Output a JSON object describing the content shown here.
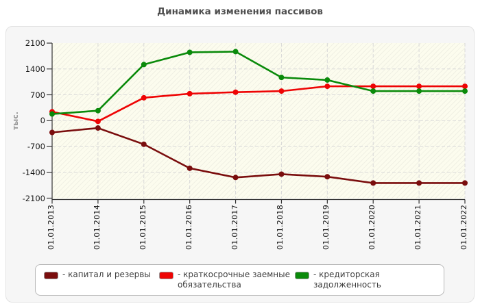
{
  "title": "Динамика изменения пассивов",
  "y_axis": {
    "label": "тыс."
  },
  "chart_data": {
    "type": "line",
    "title": "Динамика изменения пассивов",
    "ylabel": "тыс.",
    "ylim": [
      -2100,
      2100
    ],
    "yticks": [
      2100,
      1400,
      700,
      0,
      -700,
      -1400,
      -2100
    ],
    "grid": true,
    "legend_position": "bottom",
    "x": [
      "01.01.2013",
      "01.01.2014",
      "01.01.2015",
      "01.01.2016",
      "01.01.2017",
      "01.01.2018",
      "01.01.2019",
      "01.01.2020",
      "01.01.2021",
      "01.01.2022"
    ],
    "series": [
      {
        "name": "капитал и резервы",
        "color": "#7a0d0d",
        "values": [
          -320,
          -200,
          -640,
          -1290,
          -1540,
          -1450,
          -1520,
          -1690,
          -1690,
          -1690
        ]
      },
      {
        "name": "краткосрочные заемные обязательства",
        "color": "#ee0404",
        "values": [
          240,
          -20,
          620,
          730,
          770,
          800,
          930,
          930,
          930,
          930
        ]
      },
      {
        "name": "кредиторская задолженность",
        "color": "#0a8a0a",
        "values": [
          180,
          270,
          1520,
          1850,
          1870,
          1170,
          1100,
          800,
          800,
          800
        ]
      }
    ]
  },
  "legend": {
    "items": [
      {
        "label": "- капитал и резервы",
        "color": "#7a0d0d"
      },
      {
        "label": "- краткосрочные заемные обязательства",
        "color": "#ee0404"
      },
      {
        "label": "- кредиторская задолженность",
        "color": "#0a8a0a"
      }
    ]
  }
}
